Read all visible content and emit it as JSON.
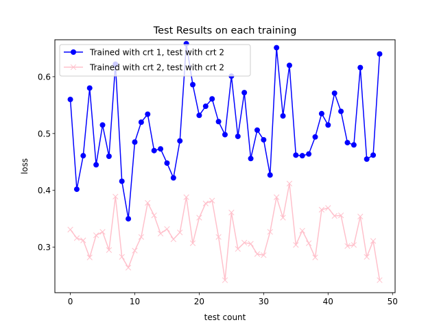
{
  "chart_data": {
    "type": "line",
    "title": "Test Results on each training",
    "xlabel": "test count",
    "ylabel": "loss",
    "xlim": [
      -2.4,
      50.4
    ],
    "ylim": [
      0.22,
      0.665
    ],
    "x_ticks": [
      0,
      10,
      20,
      30,
      40,
      50
    ],
    "x_tick_labels": [
      "0",
      "10",
      "20",
      "30",
      "40",
      "50"
    ],
    "y_ticks": [
      0.3,
      0.4,
      0.5,
      0.6
    ],
    "y_tick_labels": [
      "0.3",
      "0.4",
      "0.5",
      "0.6"
    ],
    "grid": false,
    "legend_position": "upper-left",
    "series": [
      {
        "name": "Trained with crt 1, test with crt 2",
        "color": "#0000ff",
        "marker": "circle",
        "x": [
          0,
          1,
          2,
          3,
          4,
          5,
          6,
          7,
          8,
          9,
          10,
          11,
          12,
          13,
          14,
          15,
          16,
          17,
          18,
          19,
          20,
          21,
          22,
          23,
          24,
          25,
          26,
          27,
          28,
          29,
          30,
          31,
          32,
          33,
          34,
          35,
          36,
          37,
          38,
          39,
          40,
          41,
          42,
          43,
          44,
          45,
          46,
          47,
          48
        ],
        "values": [
          0.56,
          0.402,
          0.461,
          0.58,
          0.445,
          0.515,
          0.46,
          0.622,
          0.416,
          0.35,
          0.485,
          0.52,
          0.534,
          0.47,
          0.473,
          0.448,
          0.422,
          0.487,
          0.658,
          0.586,
          0.532,
          0.548,
          0.561,
          0.521,
          0.498,
          0.601,
          0.495,
          0.572,
          0.456,
          0.506,
          0.489,
          0.427,
          0.651,
          0.531,
          0.62,
          0.462,
          0.461,
          0.464,
          0.494,
          0.535,
          0.515,
          0.571,
          0.539,
          0.484,
          0.48,
          0.616,
          0.455,
          0.462,
          0.64
        ]
      },
      {
        "name": "Trained with crt 2, test with crt 2",
        "color": "#ffc0cb",
        "marker": "x",
        "x": [
          0,
          1,
          2,
          3,
          4,
          5,
          6,
          7,
          8,
          9,
          10,
          11,
          12,
          13,
          14,
          15,
          16,
          17,
          18,
          19,
          20,
          21,
          22,
          23,
          24,
          25,
          26,
          27,
          28,
          29,
          30,
          31,
          32,
          33,
          34,
          35,
          36,
          37,
          38,
          39,
          40,
          41,
          42,
          43,
          44,
          45,
          46,
          47,
          48
        ],
        "values": [
          0.331,
          0.316,
          0.312,
          0.282,
          0.321,
          0.327,
          0.295,
          0.389,
          0.283,
          0.264,
          0.294,
          0.318,
          0.378,
          0.356,
          0.324,
          0.332,
          0.314,
          0.326,
          0.388,
          0.307,
          0.352,
          0.377,
          0.382,
          0.318,
          0.242,
          0.361,
          0.297,
          0.308,
          0.306,
          0.288,
          0.286,
          0.327,
          0.388,
          0.352,
          0.412,
          0.304,
          0.329,
          0.307,
          0.282,
          0.366,
          0.369,
          0.355,
          0.356,
          0.302,
          0.304,
          0.354,
          0.283,
          0.311,
          0.242
        ]
      }
    ]
  }
}
